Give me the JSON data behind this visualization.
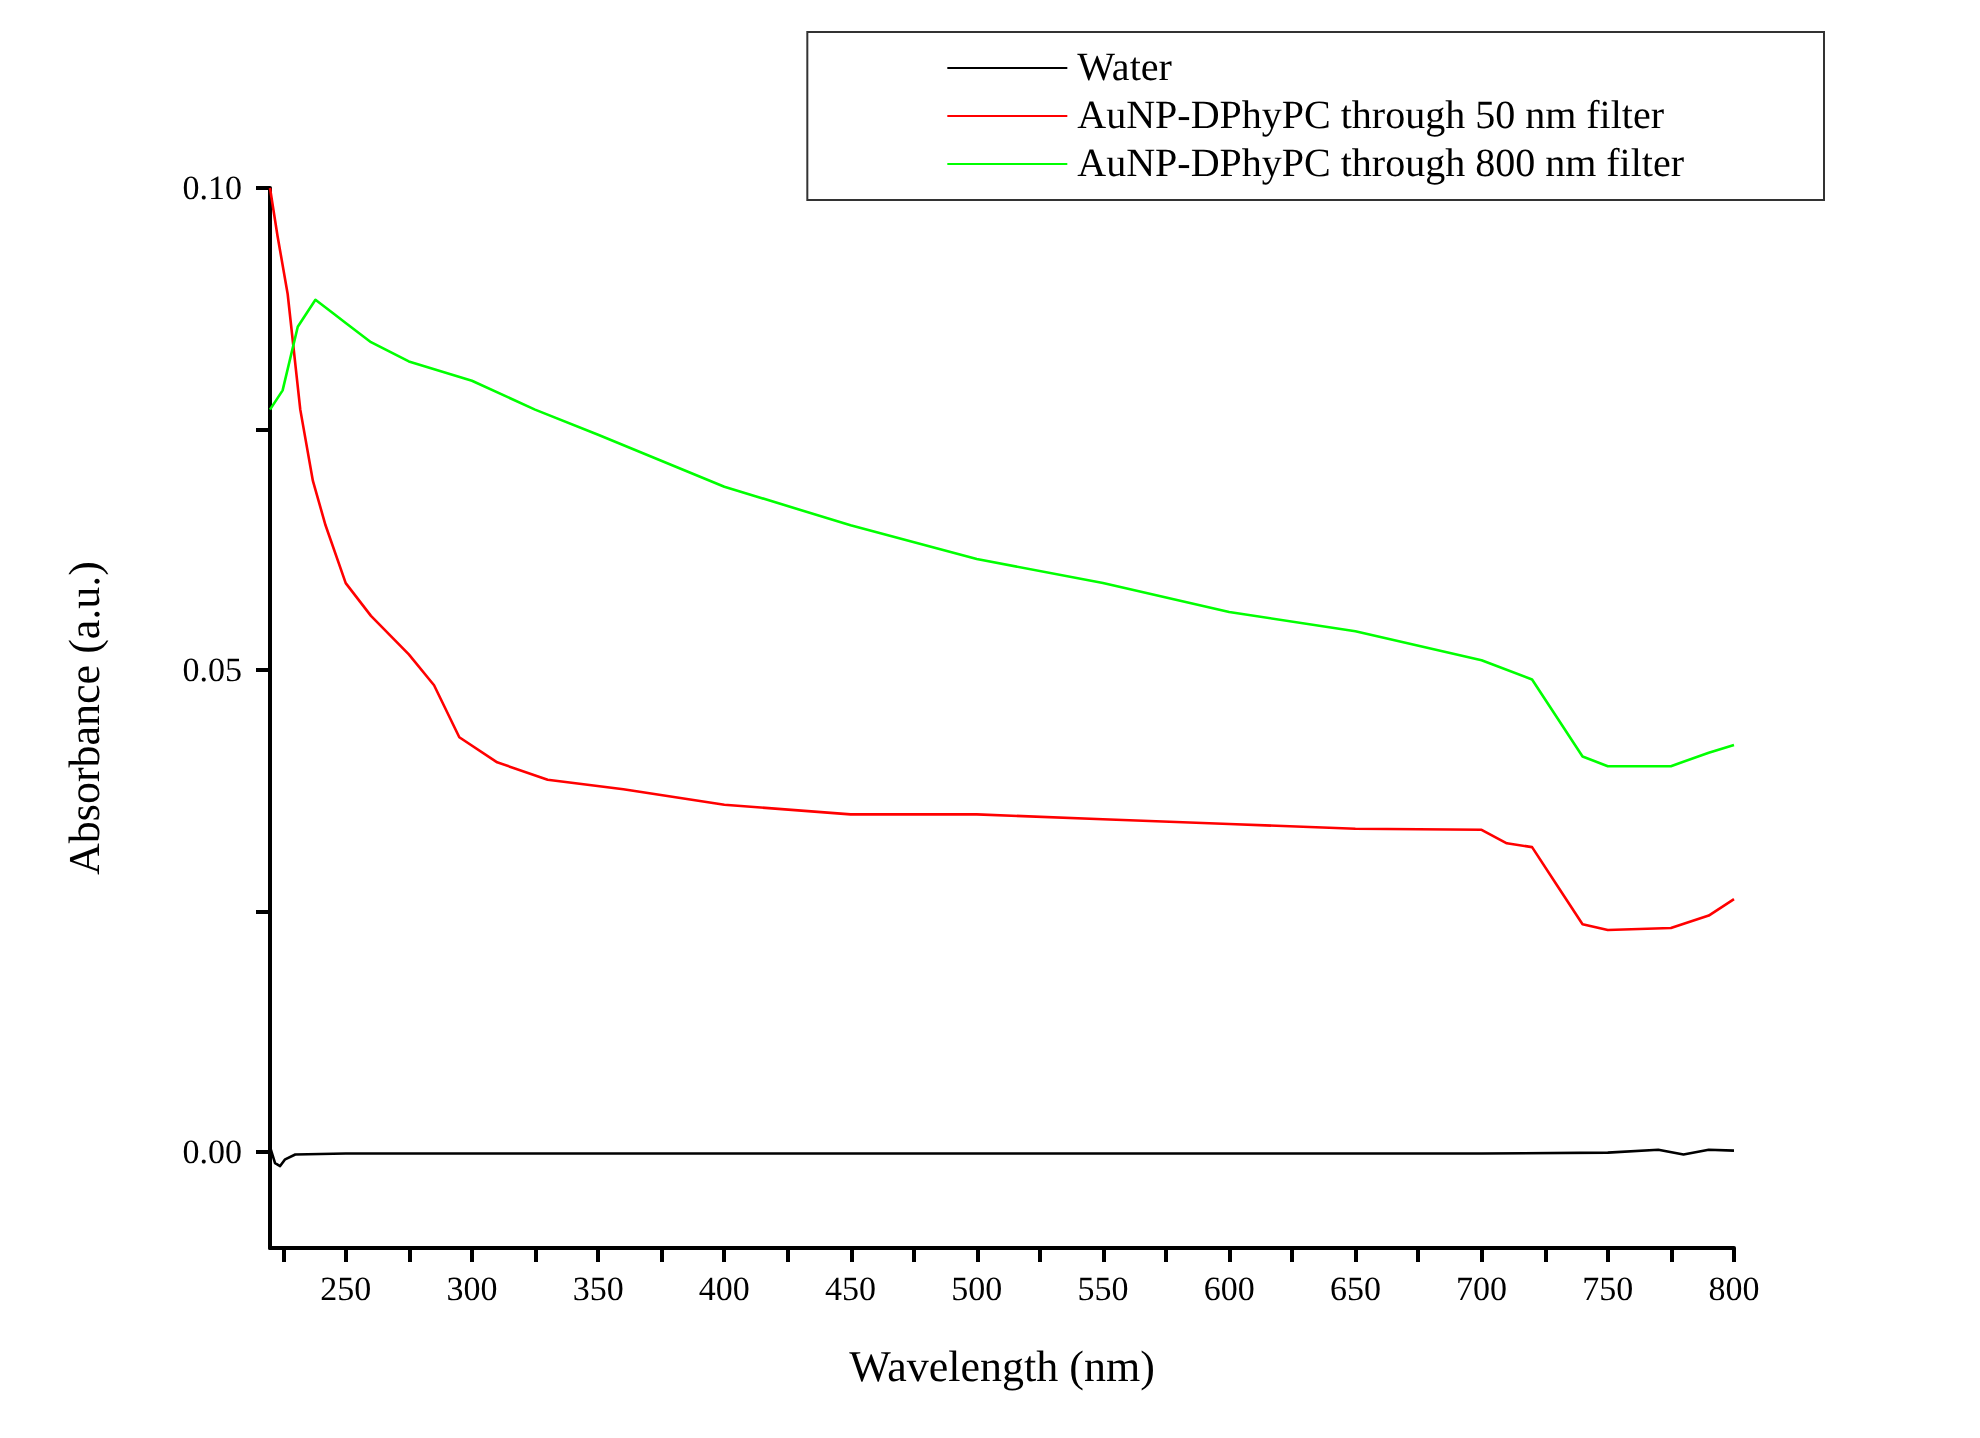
{
  "chart_data": {
    "type": "line",
    "xlabel": "Wavelength (nm)",
    "ylabel": "Absorbance (a.u.)",
    "legend": "top right",
    "grid": false,
    "marker": "none",
    "line_style": "solid",
    "xlim": [
      220,
      800
    ],
    "ylim": [
      -0.01,
      0.1
    ],
    "xticks": [
      {
        "value": 225,
        "label": null
      },
      250,
      {
        "value": 275,
        "label": null
      },
      300,
      {
        "value": 325,
        "label": null
      },
      350,
      {
        "value": 375,
        "label": null
      },
      400,
      {
        "value": 425,
        "label": null
      },
      450,
      {
        "value": 475,
        "label": null
      },
      500,
      {
        "value": 525,
        "label": null
      },
      550,
      {
        "value": 575,
        "label": null
      },
      600,
      {
        "value": 625,
        "label": null
      },
      650,
      {
        "value": 675,
        "label": null
      },
      700,
      {
        "value": 725,
        "label": null
      },
      750,
      {
        "value": 775,
        "label": null
      },
      800
    ],
    "yticks": [
      {
        "value": 0,
        "label": "0.00"
      },
      {
        "value": 0.025,
        "label": null
      },
      {
        "value": 0.05,
        "label": "0.05"
      },
      {
        "value": 0.075,
        "label": null
      },
      {
        "value": 0.1,
        "label": "0.10"
      }
    ],
    "series": [
      {
        "name": "Water",
        "color": "#000000",
        "x": [
          220,
          222,
          224,
          226,
          230,
          250,
          300,
          400,
          500,
          600,
          700,
          750,
          770,
          780,
          790,
          800
        ],
        "values": [
          0.0005,
          -0.0012,
          -0.0015,
          -0.0008,
          -0.0003,
          -0.0002,
          -0.0002,
          -0.0002,
          -0.0002,
          -0.0002,
          -0.0002,
          -0.0001,
          0.0002,
          -0.0003,
          0.0002,
          0.0001
        ]
      },
      {
        "name": "AuNP-DPhyPC through 50 nm filter",
        "color": "#ff0000",
        "x": [
          220,
          223,
          227,
          232,
          237,
          242,
          250,
          260,
          275,
          285,
          295,
          310,
          330,
          360,
          400,
          450,
          500,
          550,
          600,
          650,
          700,
          710,
          720,
          730,
          740,
          750,
          775,
          790,
          800
        ],
        "values": [
          0.1,
          0.095,
          0.089,
          0.077,
          0.0696,
          0.065,
          0.059,
          0.0556,
          0.0516,
          0.0484,
          0.043,
          0.0404,
          0.0386,
          0.0376,
          0.036,
          0.035,
          0.035,
          0.0345,
          0.034,
          0.0335,
          0.0334,
          0.032,
          0.0316,
          0.0276,
          0.0236,
          0.023,
          0.0232,
          0.0245,
          0.0262
        ]
      },
      {
        "name": "AuNP-DPhyPC through 800 nm filter",
        "color": "#00ff00",
        "x": [
          220,
          225,
          231,
          238,
          245,
          250,
          260,
          275,
          300,
          325,
          350,
          400,
          450,
          500,
          550,
          600,
          650,
          700,
          720,
          730,
          740,
          750,
          775,
          790,
          800
        ],
        "values": [
          0.077,
          0.079,
          0.0856,
          0.0884,
          0.087,
          0.086,
          0.084,
          0.082,
          0.08,
          0.077,
          0.0744,
          0.069,
          0.065,
          0.0615,
          0.059,
          0.056,
          0.054,
          0.051,
          0.049,
          0.045,
          0.041,
          0.04,
          0.04,
          0.0414,
          0.0422
        ]
      }
    ]
  }
}
